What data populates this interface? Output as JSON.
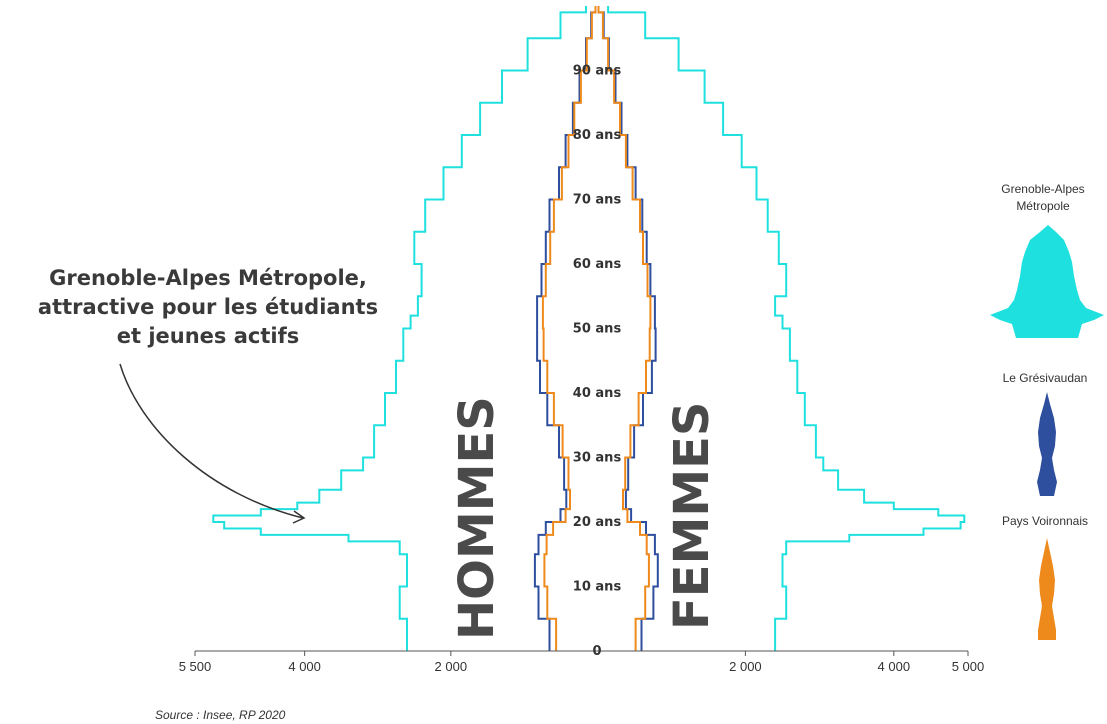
{
  "chart_data": {
    "type": "population-pyramid",
    "sides": {
      "left": "HOMMES",
      "right": "FEMMES"
    },
    "x_ticks_left": [
      {
        "value": 5500,
        "label": "5 500"
      },
      {
        "value": 4000,
        "label": "4 000"
      },
      {
        "value": 2000,
        "label": "2 000"
      }
    ],
    "x_ticks_right": [
      {
        "value": 2000,
        "label": "2 000"
      },
      {
        "value": 4000,
        "label": "4 000"
      },
      {
        "value": 5000,
        "label": "5 000"
      }
    ],
    "age_labels": [
      {
        "age": 0,
        "label": "0"
      },
      {
        "age": 10,
        "label": "10 ans"
      },
      {
        "age": 20,
        "label": "20 ans"
      },
      {
        "age": 30,
        "label": "30 ans"
      },
      {
        "age": 40,
        "label": "40 ans"
      },
      {
        "age": 50,
        "label": "50 ans"
      },
      {
        "age": 60,
        "label": "60 ans"
      },
      {
        "age": 70,
        "label": "70 ans"
      },
      {
        "age": 80,
        "label": "80 ans"
      },
      {
        "age": 90,
        "label": "90 ans"
      }
    ],
    "series": [
      {
        "name": "Grenoble-Alpes Métropole",
        "color": "#1ee0df",
        "ages": [
          0,
          5,
          10,
          15,
          17,
          18,
          19,
          20,
          21,
          22,
          23,
          25,
          28,
          30,
          35,
          40,
          45,
          50,
          52,
          55,
          60,
          65,
          70,
          75,
          80,
          85,
          90,
          95,
          99
        ],
        "hommes": [
          2600,
          2700,
          2600,
          2700,
          3400,
          4600,
          5100,
          5250,
          4600,
          4100,
          3800,
          3500,
          3200,
          3050,
          2900,
          2750,
          2650,
          2550,
          2450,
          2400,
          2500,
          2350,
          2100,
          1850,
          1600,
          1300,
          950,
          500,
          150
        ],
        "femmes": [
          2400,
          2550,
          2500,
          2550,
          3400,
          4400,
          4900,
          4950,
          4600,
          4000,
          3600,
          3250,
          3050,
          2950,
          2800,
          2700,
          2600,
          2500,
          2400,
          2550,
          2450,
          2300,
          2150,
          1950,
          1700,
          1450,
          1100,
          650,
          150
        ]
      },
      {
        "name": "Le Grésivaudan",
        "color": "#2e4e9e",
        "ages": [
          0,
          5,
          10,
          15,
          18,
          20,
          22,
          25,
          30,
          35,
          40,
          45,
          50,
          55,
          60,
          65,
          70,
          75,
          80,
          85,
          90,
          95,
          99
        ],
        "hommes": [
          650,
          800,
          850,
          800,
          700,
          500,
          420,
          450,
          520,
          680,
          780,
          820,
          820,
          760,
          700,
          650,
          520,
          430,
          330,
          240,
          150,
          80,
          20
        ],
        "femmes": [
          600,
          760,
          820,
          780,
          660,
          460,
          390,
          420,
          500,
          620,
          740,
          790,
          780,
          720,
          670,
          610,
          520,
          410,
          330,
          250,
          160,
          90,
          20
        ]
      },
      {
        "name": "Pays Voironnais",
        "color": "#ee8a1c",
        "ages": [
          0,
          5,
          10,
          15,
          18,
          20,
          22,
          25,
          30,
          35,
          40,
          45,
          50,
          55,
          60,
          65,
          70,
          75,
          80,
          85,
          90,
          95,
          99
        ],
        "hommes": [
          560,
          680,
          720,
          690,
          600,
          430,
          370,
          390,
          470,
          590,
          680,
          730,
          740,
          700,
          640,
          590,
          480,
          390,
          310,
          220,
          140,
          70,
          20
        ],
        "femmes": [
          520,
          650,
          700,
          670,
          580,
          410,
          350,
          380,
          450,
          560,
          660,
          710,
          720,
          680,
          620,
          580,
          480,
          390,
          310,
          230,
          150,
          80,
          20
        ]
      }
    ],
    "annotation": {
      "lines": [
        "Grenoble-Alpes Métropole,",
        "attractive pour les étudiants",
        "et jeunes actifs"
      ]
    },
    "legend": [
      {
        "label_lines": [
          "Grenoble-Alpes",
          "Métropole"
        ],
        "color": "#1ee0df"
      },
      {
        "label_lines": [
          "Le Grésivaudan"
        ],
        "color": "#2e4e9e"
      },
      {
        "label_lines": [
          "Pays Voironnais"
        ],
        "color": "#ee8a1c"
      }
    ],
    "source": "Source : Insee, RP 2020"
  }
}
